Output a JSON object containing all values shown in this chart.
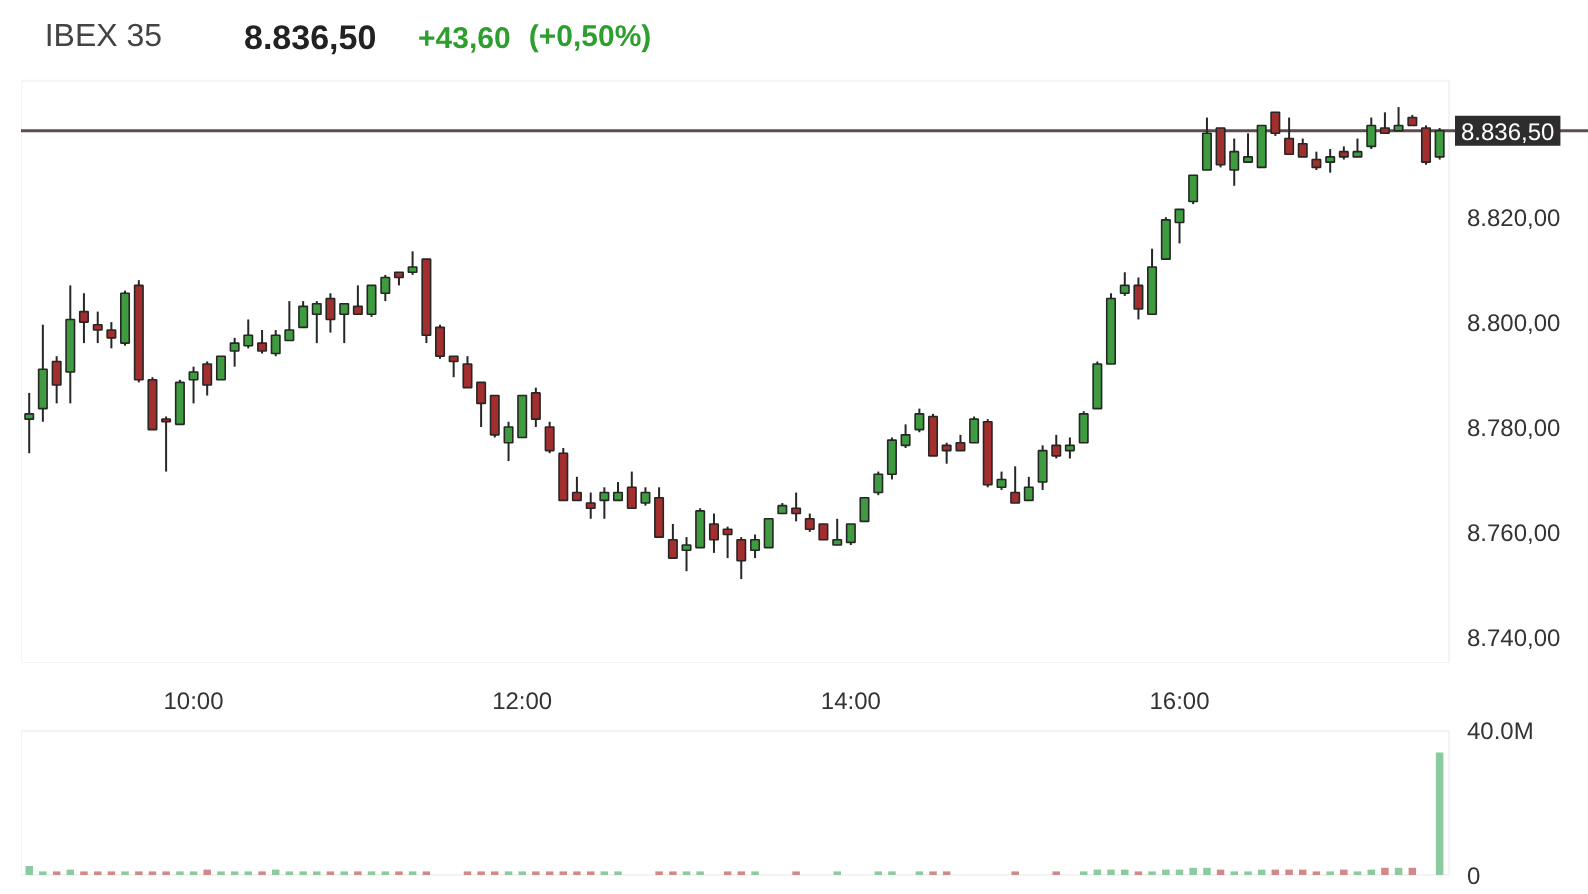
{
  "chart_data": [
    {
      "type": "candlestick",
      "title": "IBEX 35",
      "annotations": [
        "8.836,50",
        "+43,60",
        "(+0,50%)"
      ],
      "x": [
        9,
        9.083,
        9.167,
        9.25,
        9.333,
        9.417,
        9.5,
        9.583,
        9.667,
        9.75,
        9.833,
        9.917,
        10,
        10.083,
        10.167,
        10.25,
        10.333,
        10.417,
        10.5,
        10.583,
        10.667,
        10.75,
        10.833,
        10.917,
        11,
        11.083,
        11.167,
        11.25,
        11.333,
        11.417,
        11.5,
        11.583,
        11.667,
        11.75,
        11.833,
        11.917,
        12,
        12.083,
        12.167,
        12.25,
        12.333,
        12.417,
        12.5,
        12.583,
        12.667,
        12.75,
        12.833,
        12.917,
        13,
        13.083,
        13.167,
        13.25,
        13.333,
        13.417,
        13.5,
        13.583,
        13.667,
        13.75,
        13.833,
        13.917,
        14,
        14.083,
        14.167,
        14.25,
        14.333,
        14.417,
        14.5,
        14.583,
        14.667,
        14.75,
        14.833,
        14.917,
        15,
        15.083,
        15.167,
        15.25,
        15.333,
        15.417,
        15.5,
        15.583,
        15.667,
        15.75,
        15.833,
        15.917,
        16,
        16.083,
        16.167,
        16.25,
        16.333,
        16.417,
        16.5,
        16.583,
        16.667,
        16.75,
        16.833,
        16.917,
        17,
        17.083,
        17.167,
        17.25,
        17.333,
        17.417,
        17.5,
        17.583
      ],
      "ohlc": [
        [
          8781.5,
          8786.5,
          8775,
          8782.5
        ],
        [
          8783.5,
          8799.5,
          8781,
          8791
        ],
        [
          8792.5,
          8793.5,
          8784.5,
          8788
        ],
        [
          8790.5,
          8807,
          8784.5,
          8800.5
        ],
        [
          8802,
          8805.5,
          8796,
          8800
        ],
        [
          8799.5,
          8802,
          8796,
          8798.5
        ],
        [
          8798.5,
          8800,
          8795,
          8797
        ],
        [
          8796,
          8806,
          8795.5,
          8805.5
        ],
        [
          8807,
          8808,
          8788.5,
          8789
        ],
        [
          8789,
          8789.5,
          8779.5,
          8779.5
        ],
        [
          8781.5,
          8782,
          8771.5,
          8781
        ],
        [
          8780.5,
          8789,
          8780.5,
          8788.5
        ],
        [
          8789,
          8791.5,
          8784.5,
          8790.5
        ],
        [
          8792,
          8792.5,
          8786,
          8788
        ],
        [
          8789,
          8793.5,
          8789,
          8793.5
        ],
        [
          8794.5,
          8797,
          8791.5,
          8796
        ],
        [
          8795.5,
          8800.5,
          8795,
          8797.5
        ],
        [
          8796,
          8798.5,
          8794,
          8794.5
        ],
        [
          8794,
          8798.5,
          8793.5,
          8797.5
        ],
        [
          8796.5,
          8804,
          8796.5,
          8798.5
        ],
        [
          8799,
          8804,
          8799,
          8803
        ],
        [
          8801.5,
          8804,
          8796,
          8803.5
        ],
        [
          8804.5,
          8805.5,
          8798,
          8800.5
        ],
        [
          8801.5,
          8803.5,
          8796,
          8803.5
        ],
        [
          8803,
          8807,
          8801.5,
          8801.5
        ],
        [
          8801.5,
          8807,
          8801,
          8807
        ],
        [
          8805.5,
          8809,
          8804,
          8808.5
        ],
        [
          8809.5,
          8809.5,
          8807,
          8808.5
        ],
        [
          8809.5,
          8813.5,
          8809,
          8810.5
        ],
        [
          8812,
          8812,
          8796,
          8797.5
        ],
        [
          8799,
          8799.5,
          8793,
          8793.5
        ],
        [
          8793.5,
          8793.5,
          8789.5,
          8792.5
        ],
        [
          8792,
          8793.5,
          8787.5,
          8787.5
        ],
        [
          8788.5,
          8788.5,
          8780,
          8784.5
        ],
        [
          8786,
          8786,
          8778,
          8778.5
        ],
        [
          8777,
          8781,
          8773.5,
          8780
        ],
        [
          8778,
          8786,
          8778,
          8786
        ],
        [
          8786.5,
          8787.5,
          8780,
          8781.5
        ],
        [
          8780,
          8781,
          8775,
          8775.5
        ],
        [
          8775,
          8776,
          8766,
          8766
        ],
        [
          8767.5,
          8770.5,
          8766,
          8766
        ],
        [
          8765.5,
          8767.5,
          8762.5,
          8764.5
        ],
        [
          8766,
          8768.5,
          8762.5,
          8767.5
        ],
        [
          8766,
          8769.5,
          8766,
          8767.5
        ],
        [
          8768.5,
          8771.5,
          8764.5,
          8764.5
        ],
        [
          8765.5,
          8768.5,
          8765,
          8767.5
        ],
        [
          8766.5,
          8768.5,
          8759,
          8759
        ],
        [
          8758.5,
          8761.5,
          8755,
          8755
        ],
        [
          8756.5,
          8759,
          8752.5,
          8757.5
        ],
        [
          8757,
          8764.5,
          8757,
          8764
        ],
        [
          8761.5,
          8763.5,
          8756,
          8758.5
        ],
        [
          8760.5,
          8761,
          8755,
          8759.5
        ],
        [
          8758.5,
          8759,
          8751,
          8754.5
        ],
        [
          8756.5,
          8759.5,
          8755,
          8758.5
        ],
        [
          8757,
          8762.5,
          8757,
          8762.5
        ],
        [
          8763.5,
          8765.5,
          8763.5,
          8765
        ],
        [
          8764.5,
          8767.5,
          8762,
          8763.5
        ],
        [
          8762.5,
          8763.5,
          8760,
          8760.5
        ],
        [
          8761.5,
          8761.5,
          8758.5,
          8758.5
        ],
        [
          8757.5,
          8762.5,
          8757.5,
          8758.5
        ],
        [
          8758,
          8761.5,
          8757.5,
          8761.5
        ],
        [
          8762,
          8766.5,
          8762,
          8766.5
        ],
        [
          8767.5,
          8771.5,
          8767,
          8771
        ],
        [
          8771,
          8778,
          8770,
          8777.5
        ],
        [
          8776.5,
          8780.5,
          8776,
          8778.5
        ],
        [
          8779.5,
          8783.5,
          8779,
          8782.5
        ],
        [
          8782,
          8782.5,
          8774.5,
          8774.5
        ],
        [
          8776.5,
          8777,
          8773,
          8775.5
        ],
        [
          8777,
          8778.5,
          8775.5,
          8775.5
        ],
        [
          8777,
          8782,
          8777,
          8781.5
        ],
        [
          8781,
          8781.5,
          8768.5,
          8769
        ],
        [
          8768.5,
          8771.5,
          8768,
          8770
        ],
        [
          8767.5,
          8772.5,
          8765.5,
          8765.5
        ],
        [
          8766,
          8770.5,
          8766,
          8768.5
        ],
        [
          8769.5,
          8776.5,
          8768,
          8775.5
        ],
        [
          8776.5,
          8778.5,
          8774,
          8774.5
        ],
        [
          8775.5,
          8778,
          8774,
          8776.5
        ],
        [
          8777,
          8783,
          8777,
          8782.5
        ],
        [
          8783.5,
          8792.5,
          8783.5,
          8792
        ],
        [
          8792,
          8805.5,
          8792,
          8804.5
        ],
        [
          8805.5,
          8809.5,
          8805,
          8807
        ],
        [
          8807,
          8808.5,
          8800.5,
          8802.5
        ],
        [
          8801.5,
          8814,
          8801.5,
          8810.5
        ],
        [
          8812,
          8820,
          8812,
          8819.5
        ],
        [
          8819,
          8821.5,
          8815,
          8821.5
        ],
        [
          8823,
          8828,
          8822.5,
          8828
        ],
        [
          8829,
          8839,
          8829,
          8836
        ],
        [
          8837,
          8837,
          8829.5,
          8830
        ],
        [
          8829,
          8835,
          8826,
          8832.5
        ],
        [
          8830.5,
          8836,
          8830.5,
          8831.5
        ],
        [
          8829.5,
          8837.5,
          8829.5,
          8837.5
        ],
        [
          8840,
          8840,
          8835.5,
          8836
        ],
        [
          8835,
          8839,
          8832,
          8832
        ],
        [
          8834,
          8835,
          8831.5,
          8831.5
        ],
        [
          8831,
          8832.5,
          8829,
          8829.5
        ],
        [
          8830.5,
          8833,
          8828.5,
          8831.5
        ],
        [
          8832.5,
          8833.5,
          8831,
          8831.5
        ],
        [
          8831.5,
          8835,
          8831.5,
          8832.5
        ],
        [
          8833.5,
          8839,
          8833,
          8837.5
        ],
        [
          8837,
          8840,
          8836,
          8836
        ],
        [
          8836.5,
          8841,
          8836.5,
          8837.5
        ],
        [
          8839,
          8839.5,
          8837.5,
          8837.5
        ],
        [
          8837,
          8837.5,
          8830,
          8830.5
        ],
        [
          8831.5,
          8837,
          8831,
          8836.5
        ]
      ],
      "colors": [
        "#3f9b3f",
        "#3f9b3f",
        "#a32e2e",
        "#3f9b3f",
        "#a32e2e",
        "#a32e2e",
        "#a32e2e",
        "#3f9b3f",
        "#a32e2e",
        "#a32e2e",
        "#a32e2e",
        "#3f9b3f",
        "#3f9b3f",
        "#a32e2e",
        "#3f9b3f",
        "#3f9b3f",
        "#3f9b3f",
        "#a32e2e",
        "#3f9b3f",
        "#3f9b3f",
        "#3f9b3f",
        "#3f9b3f",
        "#a32e2e",
        "#3f9b3f",
        "#a32e2e",
        "#3f9b3f",
        "#3f9b3f",
        "#a32e2e",
        "#3f9b3f",
        "#a32e2e",
        "#a32e2e",
        "#a32e2e",
        "#a32e2e",
        "#a32e2e",
        "#a32e2e",
        "#3f9b3f",
        "#3f9b3f",
        "#a32e2e",
        "#a32e2e",
        "#a32e2e",
        "#a32e2e",
        "#a32e2e",
        "#3f9b3f",
        "#3f9b3f",
        "#a32e2e",
        "#3f9b3f",
        "#a32e2e",
        "#a32e2e",
        "#3f9b3f",
        "#3f9b3f",
        "#a32e2e",
        "#a32e2e",
        "#a32e2e",
        "#3f9b3f",
        "#3f9b3f",
        "#3f9b3f",
        "#a32e2e",
        "#a32e2e",
        "#a32e2e",
        "#3f9b3f",
        "#3f9b3f",
        "#3f9b3f",
        "#3f9b3f",
        "#3f9b3f",
        "#3f9b3f",
        "#3f9b3f",
        "#a32e2e",
        "#a32e2e",
        "#a32e2e",
        "#3f9b3f",
        "#a32e2e",
        "#3f9b3f",
        "#a32e2e",
        "#3f9b3f",
        "#3f9b3f",
        "#a32e2e",
        "#3f9b3f",
        "#3f9b3f",
        "#3f9b3f",
        "#3f9b3f",
        "#3f9b3f",
        "#a32e2e",
        "#3f9b3f",
        "#3f9b3f",
        "#3f9b3f",
        "#3f9b3f",
        "#3f9b3f",
        "#a32e2e",
        "#3f9b3f",
        "#3f9b3f",
        "#3f9b3f",
        "#a32e2e",
        "#a32e2e",
        "#a32e2e",
        "#a32e2e",
        "#3f9b3f",
        "#a32e2e",
        "#3f9b3f",
        "#3f9b3f",
        "#a32e2e",
        "#3f9b3f",
        "#a32e2e",
        "#a32e2e",
        "#3f9b3f"
      ],
      "xlim": [
        8.95,
        17.64
      ],
      "ylim": [
        8735,
        8846
      ],
      "xticks": [
        {
          "value": 10,
          "label": "10:00"
        },
        {
          "value": 12,
          "label": "12:00"
        },
        {
          "value": 14,
          "label": "14:00"
        },
        {
          "value": 16,
          "label": "16:00"
        }
      ],
      "yticks": [
        {
          "value": 8740,
          "label": "8.740,00"
        },
        {
          "value": 8760,
          "label": "8.760,00"
        },
        {
          "value": 8780,
          "label": "8.780,00"
        },
        {
          "value": 8800,
          "label": "8.800,00"
        },
        {
          "value": 8820,
          "label": "8.820,00"
        }
      ],
      "ref_lines": [
        {
          "axis": "y",
          "value": 8836.5,
          "label": "8.836,50",
          "color": "#5e4b4b"
        }
      ]
    },
    {
      "type": "bar",
      "x": [
        9,
        9.083,
        9.167,
        9.25,
        9.333,
        9.417,
        9.5,
        9.583,
        9.667,
        9.75,
        9.833,
        9.917,
        10,
        10.083,
        10.167,
        10.25,
        10.333,
        10.417,
        10.5,
        10.583,
        10.667,
        10.75,
        10.833,
        10.917,
        11,
        11.083,
        11.167,
        11.25,
        11.333,
        11.417,
        11.5,
        11.583,
        11.667,
        11.75,
        11.833,
        11.917,
        12,
        12.083,
        12.167,
        12.25,
        12.333,
        12.417,
        12.5,
        12.583,
        12.667,
        12.75,
        12.833,
        12.917,
        13,
        13.083,
        13.167,
        13.25,
        13.333,
        13.417,
        13.5,
        13.583,
        13.667,
        13.75,
        13.833,
        13.917,
        14,
        14.083,
        14.167,
        14.25,
        14.333,
        14.417,
        14.5,
        14.583,
        14.667,
        14.75,
        14.833,
        14.917,
        15,
        15.083,
        15.167,
        15.25,
        15.333,
        15.417,
        15.5,
        15.583,
        15.667,
        15.75,
        15.833,
        15.917,
        16,
        16.083,
        16.167,
        16.25,
        16.333,
        16.417,
        16.5,
        16.583,
        16.667,
        16.75,
        16.833,
        16.917,
        17,
        17.083,
        17.167,
        17.25,
        17.333,
        17.417,
        17.5,
        17.583
      ],
      "values": [
        2.5,
        1,
        1,
        1.5,
        1,
        1,
        1,
        1,
        1,
        1,
        1,
        1,
        1,
        1.5,
        1,
        1,
        1,
        1,
        1.5,
        1,
        1,
        1,
        1,
        1,
        1,
        1,
        1,
        1,
        1,
        1,
        null,
        null,
        1,
        1,
        1,
        1,
        1,
        1,
        1,
        1,
        1,
        1,
        1,
        1,
        null,
        null,
        1,
        1,
        1,
        1,
        null,
        1,
        1,
        1,
        null,
        null,
        1,
        null,
        null,
        1,
        null,
        null,
        1,
        1,
        null,
        1,
        1,
        1,
        null,
        null,
        null,
        null,
        1,
        null,
        null,
        1,
        null,
        1,
        1.5,
        1.5,
        1.5,
        1,
        1,
        1.5,
        1.5,
        2,
        2,
        1.5,
        1,
        1,
        1.5,
        1.5,
        1.5,
        1.5,
        1,
        1,
        1.5,
        1,
        1.5,
        2,
        2,
        2,
        null,
        34
      ],
      "colors": [
        "#8ccaa0",
        "#8ccaa0",
        "#d08a8a",
        "#8ccaa0",
        "#d08a8a",
        "#d08a8a",
        "#d08a8a",
        "#8ccaa0",
        "#d08a8a",
        "#d08a8a",
        "#d08a8a",
        "#8ccaa0",
        "#8ccaa0",
        "#d08a8a",
        "#8ccaa0",
        "#8ccaa0",
        "#8ccaa0",
        "#d08a8a",
        "#8ccaa0",
        "#8ccaa0",
        "#8ccaa0",
        "#8ccaa0",
        "#d08a8a",
        "#8ccaa0",
        "#d08a8a",
        "#8ccaa0",
        "#8ccaa0",
        "#d08a8a",
        "#8ccaa0",
        "#d08a8a",
        "#d08a8a",
        "#d08a8a",
        "#d08a8a",
        "#d08a8a",
        "#d08a8a",
        "#8ccaa0",
        "#8ccaa0",
        "#d08a8a",
        "#d08a8a",
        "#d08a8a",
        "#d08a8a",
        "#d08a8a",
        "#8ccaa0",
        "#8ccaa0",
        "#d08a8a",
        "#8ccaa0",
        "#d08a8a",
        "#d08a8a",
        "#8ccaa0",
        "#8ccaa0",
        "#d08a8a",
        "#d08a8a",
        "#d08a8a",
        "#8ccaa0",
        "#8ccaa0",
        "#8ccaa0",
        "#d08a8a",
        "#d08a8a",
        "#d08a8a",
        "#8ccaa0",
        "#8ccaa0",
        "#8ccaa0",
        "#8ccaa0",
        "#8ccaa0",
        "#8ccaa0",
        "#8ccaa0",
        "#d08a8a",
        "#d08a8a",
        "#d08a8a",
        "#8ccaa0",
        "#d08a8a",
        "#8ccaa0",
        "#d08a8a",
        "#8ccaa0",
        "#8ccaa0",
        "#d08a8a",
        "#8ccaa0",
        "#8ccaa0",
        "#8ccaa0",
        "#8ccaa0",
        "#8ccaa0",
        "#d08a8a",
        "#8ccaa0",
        "#8ccaa0",
        "#8ccaa0",
        "#8ccaa0",
        "#8ccaa0",
        "#d08a8a",
        "#8ccaa0",
        "#8ccaa0",
        "#8ccaa0",
        "#d08a8a",
        "#d08a8a",
        "#d08a8a",
        "#d08a8a",
        "#8ccaa0",
        "#d08a8a",
        "#8ccaa0",
        "#8ccaa0",
        "#d08a8a",
        "#8ccaa0",
        "#d08a8a",
        "#d08a8a",
        "#8ccaa0"
      ],
      "xlim": [
        8.95,
        17.64
      ],
      "ylim": [
        0,
        40
      ],
      "yticks": [
        0,
        {
          "value": 40,
          "label": "40.0M"
        }
      ],
      "tick_labels": "y"
    }
  ]
}
